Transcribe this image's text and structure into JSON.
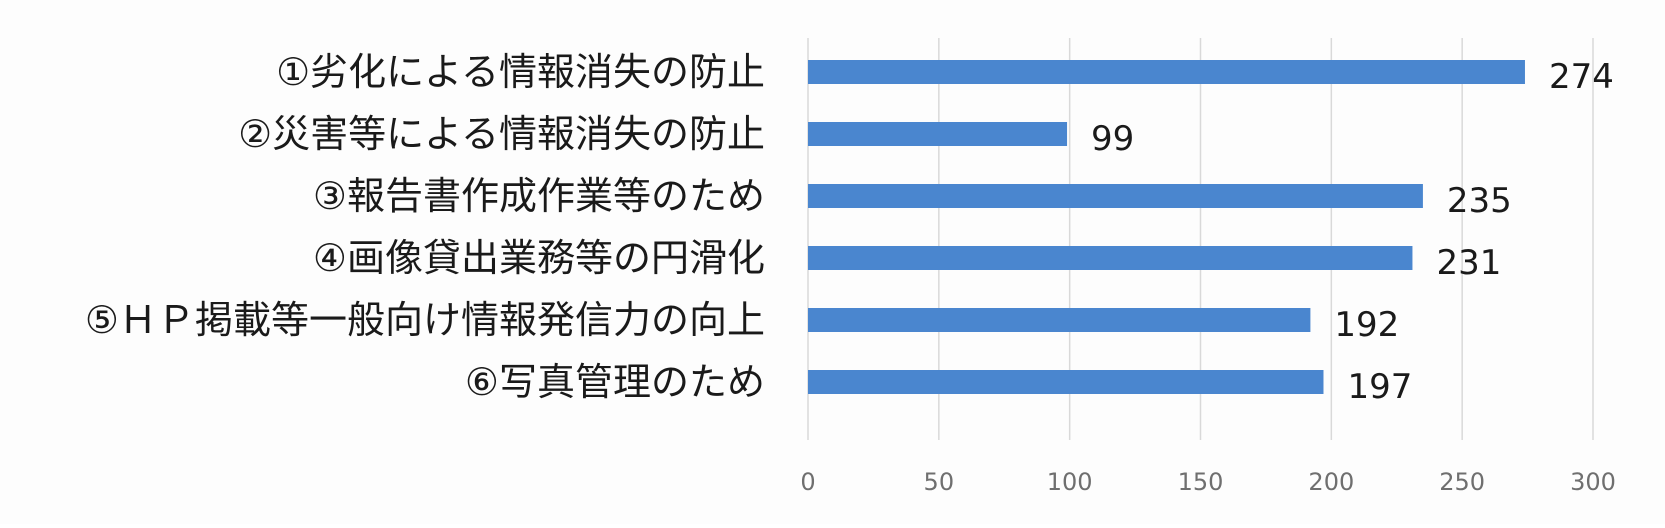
{
  "chart_data": {
    "type": "bar",
    "orientation": "horizontal",
    "categories": [
      "①劣化による情報消失の防止",
      "②災害等による情報消失の防止",
      "③報告書作成作業等のため",
      "④画像貸出業務等の円滑化",
      "⑤ＨＰ掲載等一般向け情報発信力の向上",
      "⑥写真管理のため"
    ],
    "values": [
      274,
      99,
      235,
      231,
      192,
      197
    ],
    "data_labels": [
      "274",
      "99",
      "235",
      "231",
      "192",
      "197"
    ],
    "xlim": [
      0,
      300
    ],
    "x_ticks": [
      0,
      50,
      100,
      150,
      200,
      250,
      300
    ],
    "x_tick_labels": [
      "0",
      "50",
      "100",
      "150",
      "200",
      "250",
      "300"
    ],
    "title": "",
    "xlabel": "",
    "ylabel": "",
    "bar_color": "#4a86cf",
    "grid": "vertical gridlines",
    "legend": "none"
  }
}
